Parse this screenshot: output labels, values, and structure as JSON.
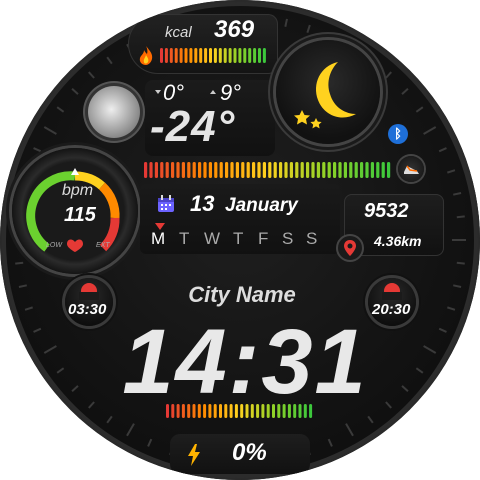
{
  "calories": {
    "label": "kcal",
    "value": "369"
  },
  "weather": {
    "temp_min": "0°",
    "temp_max": "9°",
    "temp_current": "-24°",
    "icon": "moon-stars-icon"
  },
  "heart_rate": {
    "label": "bpm",
    "value": "115",
    "low_label": "LOW",
    "high_label": "EXT"
  },
  "date": {
    "day": "13",
    "month": "January",
    "weekdays": [
      "M",
      "T",
      "W",
      "T",
      "F",
      "S",
      "S"
    ],
    "active_weekday_index": 0
  },
  "activity": {
    "steps": "9532",
    "distance": "4.36km"
  },
  "sun": {
    "sunrise": "03:30",
    "sunset": "20:30"
  },
  "location": {
    "city": "City Name"
  },
  "time": {
    "value": "14:31"
  },
  "battery": {
    "value": "0%"
  },
  "colors": {
    "accent_red": "#e53935",
    "bluetooth": "#1e6fd8",
    "moon": "#ffd21f"
  }
}
